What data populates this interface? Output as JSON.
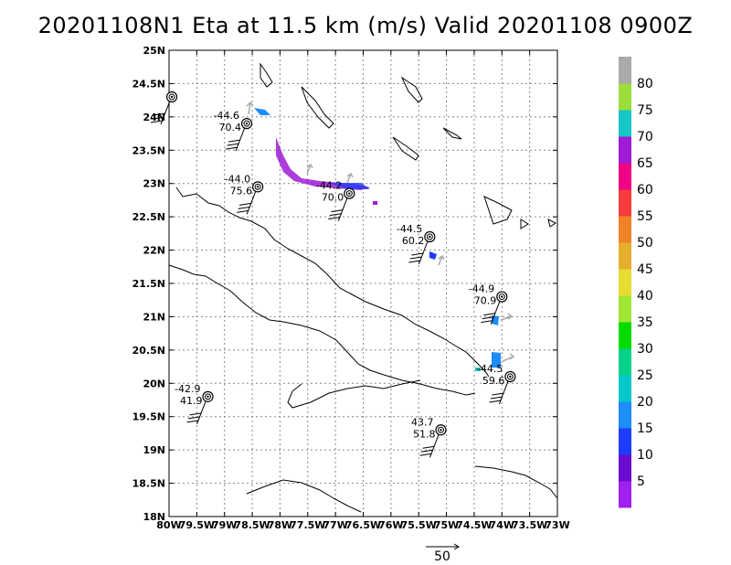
{
  "title": "20201108N1 Eta at 11.5 km (m/s) Valid 20201108 0900Z",
  "map": {
    "lon_range": [
      -80,
      -73
    ],
    "lat_range": [
      18,
      25
    ],
    "grid": true,
    "grid_style": "dotted",
    "x_tick_labels": [
      "80W",
      "79.5W",
      "79W",
      "78.5W",
      "78W",
      "77.5W",
      "77W",
      "76.5W",
      "76W",
      "75.5W",
      "75W",
      "74.5W",
      "74W",
      "73.5W",
      "73W"
    ],
    "y_tick_labels": [
      "18N",
      "18.5N",
      "19N",
      "19.5N",
      "20N",
      "20.5N",
      "21N",
      "21.5N",
      "22N",
      "22.5N",
      "23N",
      "23.5N",
      "24N",
      "24.5N",
      "25N"
    ]
  },
  "stations": [
    {
      "lon": -79.95,
      "lat": 24.3,
      "upper": "",
      "lower": ""
    },
    {
      "lon": -78.6,
      "lat": 23.9,
      "upper": "-44.6",
      "lower": "70.4"
    },
    {
      "lon": -78.4,
      "lat": 22.95,
      "upper": "-44.0",
      "lower": "75.6"
    },
    {
      "lon": -76.75,
      "lat": 22.85,
      "upper": "-44.2",
      "lower": "70.0"
    },
    {
      "lon": -75.3,
      "lat": 22.2,
      "upper": "-44.5",
      "lower": "60.2"
    },
    {
      "lon": -74.0,
      "lat": 21.3,
      "upper": "-44.9",
      "lower": "70.9"
    },
    {
      "lon": -73.85,
      "lat": 20.1,
      "upper": "-44.5",
      "lower": "59.6"
    },
    {
      "lon": -79.3,
      "lat": 19.8,
      "upper": "-42.9",
      "lower": "41.9"
    },
    {
      "lon": -75.1,
      "lat": 19.3,
      "upper": "43.7",
      "lower": "51.8"
    }
  ],
  "colorbar": {
    "labels": [
      "5",
      "10",
      "15",
      "20",
      "25",
      "30",
      "35",
      "40",
      "45",
      "50",
      "55",
      "60",
      "65",
      "70",
      "75",
      "80"
    ],
    "colors": [
      "#a020f0",
      "#6a0ccc",
      "#1e3cff",
      "#1c8cff",
      "#00c8c8",
      "#00d28c",
      "#00dc00",
      "#a0e632",
      "#e6dc32",
      "#e6af2d",
      "#f08228",
      "#fa3c3c",
      "#f00082",
      "#9f1bd5",
      "#17c6c6",
      "#9cde3c",
      "#aaaaaa"
    ]
  },
  "scale_arrow": {
    "label": "50"
  }
}
